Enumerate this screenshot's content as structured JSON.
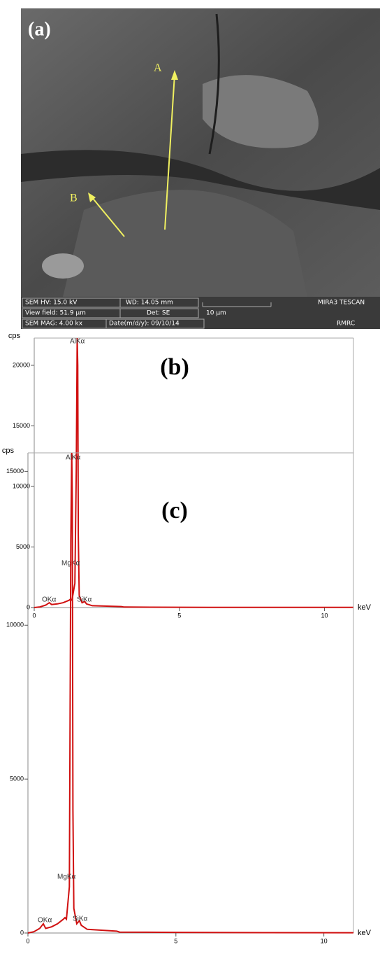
{
  "sem_image": {
    "panel_label": "(a)",
    "arrow_a": "A",
    "arrow_b": "B",
    "info": [
      "SEM HV: 15.0 kV",
      "WD: 14.05 mm",
      "View field: 51.9 µm",
      "Det: SE",
      "10 µm",
      "SEM MAG: 4.00 kx",
      "Date(m/d/y): 09/10/14",
      "MIRA3 TESCAN",
      "RMRC"
    ]
  },
  "chart_data": [
    {
      "type": "line",
      "title": "(b)",
      "y_label": "cps",
      "x_label": "keV",
      "color": "#d01010",
      "x": [
        0,
        0.2,
        0.4,
        0.52,
        0.6,
        0.8,
        1.0,
        1.2,
        1.25,
        1.3,
        1.4,
        1.45,
        1.48,
        1.5,
        1.52,
        1.55,
        1.65,
        1.74,
        1.8,
        2.0,
        3.0,
        3.1,
        4,
        6,
        8,
        11
      ],
      "values": [
        0,
        50,
        200,
        400,
        250,
        300,
        400,
        600,
        700,
        600,
        2000,
        11500,
        22250,
        20000,
        6000,
        1000,
        400,
        500,
        300,
        150,
        80,
        40,
        30,
        20,
        15,
        10
      ],
      "annotations": [
        "AlKα",
        "MgKα",
        "OKα",
        "SiKα"
      ],
      "xlim": [
        0,
        11
      ],
      "ylim": [
        0,
        22250
      ],
      "xticks": [
        0,
        5,
        10
      ],
      "yticks": [
        0,
        5000,
        10000,
        15000,
        20000
      ]
    },
    {
      "type": "line",
      "title": "(c)",
      "y_label": "cps",
      "x_label": "keV",
      "color": "#d01010",
      "x": [
        0,
        0.2,
        0.4,
        0.52,
        0.6,
        0.8,
        1.0,
        1.2,
        1.25,
        1.3,
        1.4,
        1.45,
        1.48,
        1.5,
        1.52,
        1.55,
        1.65,
        1.74,
        1.8,
        2.0,
        3.0,
        3.1,
        4,
        6,
        8,
        11
      ],
      "values": [
        0,
        40,
        150,
        300,
        150,
        200,
        300,
        450,
        500,
        450,
        1500,
        12800,
        15600,
        14000,
        4000,
        800,
        300,
        400,
        250,
        120,
        60,
        30,
        25,
        15,
        12,
        8
      ],
      "annotations": [
        "AlKα",
        "MgKα",
        "OKα",
        "SiKα"
      ],
      "xlim": [
        0,
        11
      ],
      "ylim": [
        0,
        15600
      ],
      "xticks": [
        0,
        5,
        10
      ],
      "yticks": [
        0,
        5000,
        10000,
        15000
      ]
    }
  ]
}
